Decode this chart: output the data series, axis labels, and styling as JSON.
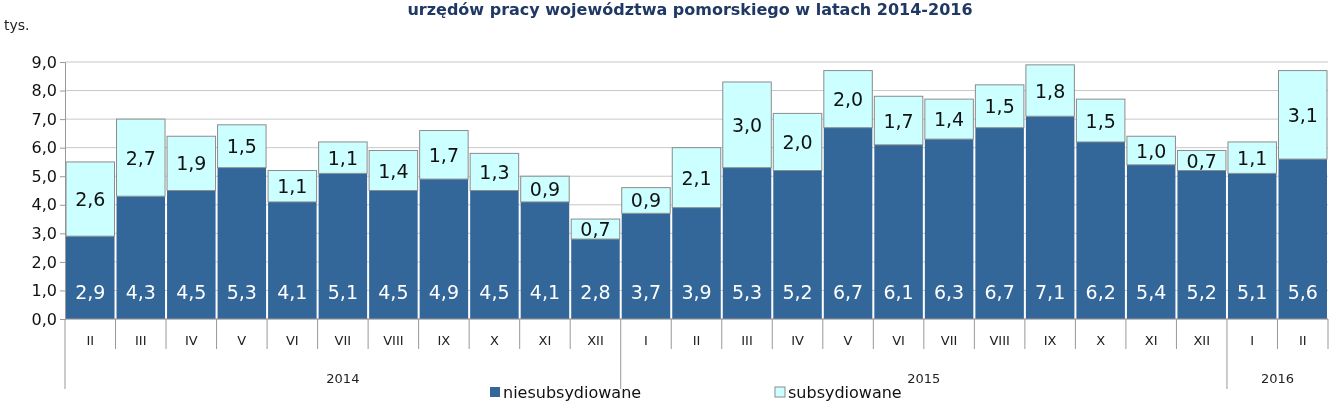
{
  "chart_data": {
    "type": "bar",
    "stacked": true,
    "title": "urzędów pracy województwa pomorskiego w latach 2014-2016",
    "ylabel": "tys.",
    "categories": [
      "II",
      "III",
      "IV",
      "V",
      "VI",
      "VII",
      "VIII",
      "IX",
      "X",
      "XI",
      "XII",
      "I",
      "II",
      "III",
      "IV",
      "V",
      "VI",
      "VII",
      "VIII",
      "IX",
      "X",
      "XI",
      "XII",
      "I",
      "II"
    ],
    "series": [
      {
        "name": "niesubsydiowane",
        "color": "#336699",
        "values": [
          2.9,
          4.3,
          4.5,
          5.3,
          4.1,
          5.1,
          4.5,
          4.9,
          4.5,
          4.1,
          2.8,
          3.7,
          3.9,
          5.3,
          5.2,
          6.7,
          6.1,
          6.3,
          6.7,
          7.1,
          6.2,
          5.4,
          5.2,
          5.1,
          5.6
        ],
        "value_labels": [
          "2,9",
          "4,3",
          "4,5",
          "5,3",
          "4,1",
          "5,1",
          "4,5",
          "4,9",
          "4,5",
          "4,1",
          "2,8",
          "3,7",
          "3,9",
          "5,3",
          "5,2",
          "6,7",
          "6,1",
          "6,3",
          "6,7",
          "7,1",
          "6,2",
          "5,4",
          "5,2",
          "5,1",
          "5,6"
        ]
      },
      {
        "name": "subsydiowane",
        "color": "#ccffff",
        "values": [
          2.6,
          2.7,
          1.9,
          1.5,
          1.1,
          1.1,
          1.4,
          1.7,
          1.3,
          0.9,
          0.7,
          0.9,
          2.1,
          3.0,
          2.0,
          2.0,
          1.7,
          1.4,
          1.5,
          1.8,
          1.5,
          1.0,
          0.7,
          1.1,
          3.1
        ],
        "value_labels": [
          "2,6",
          "2,7",
          "1,9",
          "1,5",
          "1,1",
          "1,1",
          "1,4",
          "1,7",
          "1,3",
          "0,9",
          "0,7",
          "0,9",
          "2,1",
          "3,0",
          "2,0",
          "2,0",
          "1,7",
          "1,4",
          "1,5",
          "1,8",
          "1,5",
          "1,0",
          "0,7",
          "1,1",
          "3,1"
        ]
      }
    ],
    "ylim": [
      0,
      9
    ],
    "yticks": [
      {
        "value": 0,
        "label": "0,0"
      },
      {
        "value": 1,
        "label": "1,0"
      },
      {
        "value": 2,
        "label": "2,0"
      },
      {
        "value": 3,
        "label": "3,0"
      },
      {
        "value": 4,
        "label": "4,0"
      },
      {
        "value": 5,
        "label": "5,0"
      },
      {
        "value": 6,
        "label": "6,0"
      },
      {
        "value": 7,
        "label": "7,0"
      },
      {
        "value": 8,
        "label": "8,0"
      },
      {
        "value": 9,
        "label": "9,0"
      }
    ],
    "grid": "y",
    "legend": "bottom",
    "annotations": [
      "2014",
      "2015",
      "2016"
    ]
  }
}
